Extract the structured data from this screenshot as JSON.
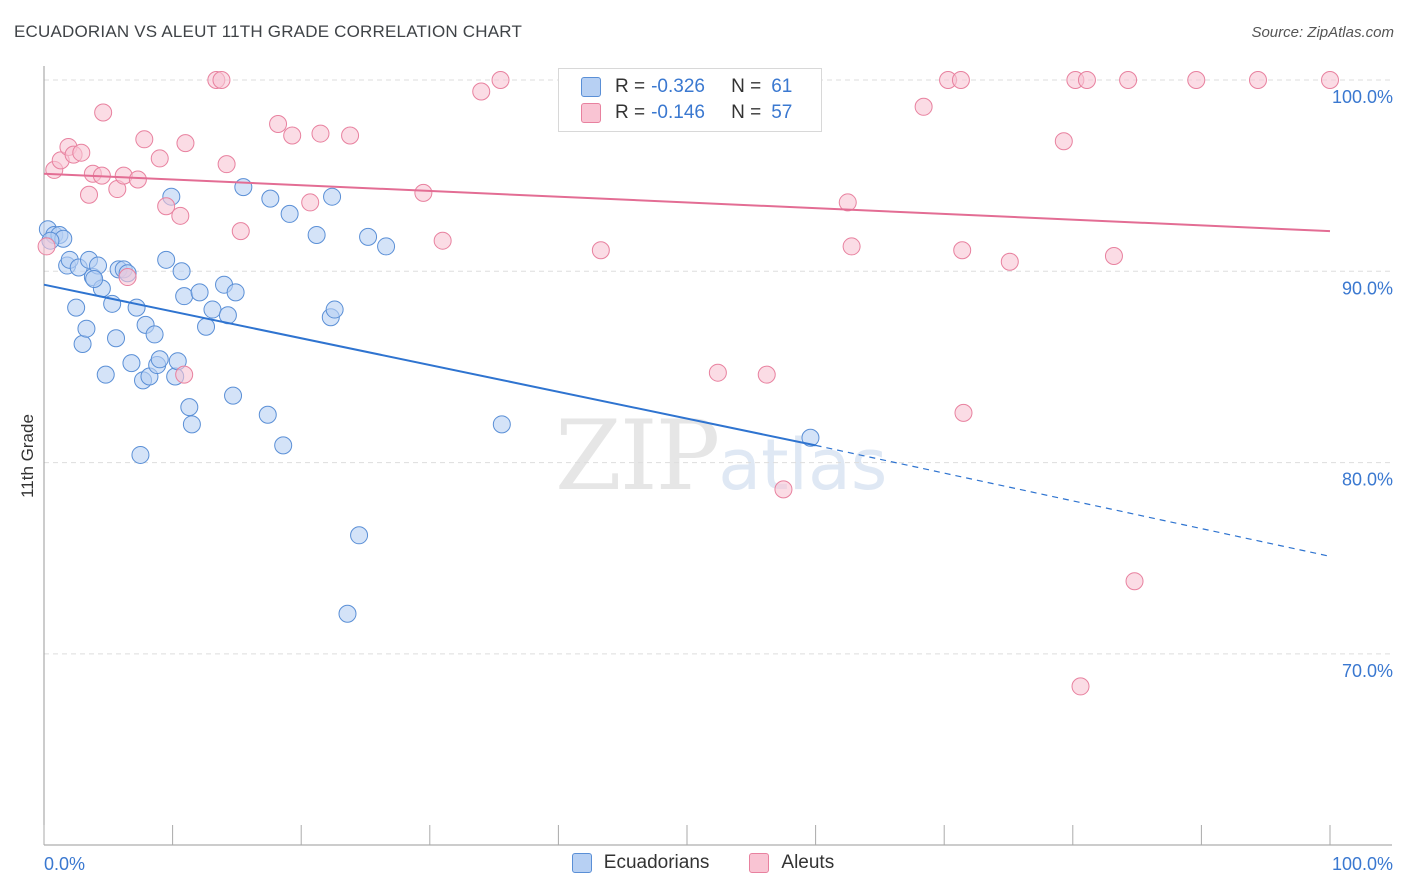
{
  "title": "ECUADORIAN VS ALEUT 11TH GRADE CORRELATION CHART",
  "source": "Source: ZipAtlas.com",
  "watermark": {
    "zip": "ZIP",
    "atlas": "atlas"
  },
  "colors": {
    "blue_fill": "#b7d0f3",
    "blue_stroke": "#5a8fd6",
    "blue_line": "#2f74d0",
    "pink_fill": "#f9c4d3",
    "pink_stroke": "#e8819f",
    "pink_line": "#e36d94",
    "axis_text": "#3a78d0",
    "grid": "#dddddd"
  },
  "legend": {
    "rows": [
      {
        "r_label": "R =",
        "r_value": "-0.326",
        "n_label": "N =",
        "n_value": "61"
      },
      {
        "r_label": "R =",
        "r_value": "-0.146",
        "n_label": "N =",
        "n_value": "57"
      }
    ]
  },
  "bottom_legend": [
    "Ecuadorians",
    "Aleuts"
  ],
  "chart_data": {
    "type": "scatter",
    "title": "ECUADORIAN VS ALEUT 11TH GRADE CORRELATION CHART",
    "xlabel": "",
    "ylabel": "11th Grade",
    "xlim": [
      0,
      100
    ],
    "ylim": [
      61,
      101
    ],
    "x_tick_labels": [
      "0.0%",
      "100.0%"
    ],
    "y_ticks": [
      70,
      80,
      90,
      100
    ],
    "y_tick_labels": [
      "70.0%",
      "80.0%",
      "90.0%",
      "100.0%"
    ],
    "grid": true,
    "legend_position": "top-center",
    "series": [
      {
        "name": "Ecuadorians",
        "R": -0.326,
        "N": 61,
        "trend": {
          "x0": 0,
          "y0": 89.3,
          "x1": 60,
          "y1": 80.9,
          "dash_to_x": 100,
          "dash_to_y": 75.1
        },
        "points": [
          [
            0.3,
            92.2
          ],
          [
            0.8,
            91.9
          ],
          [
            1.2,
            91.9
          ],
          [
            1.5,
            91.7
          ],
          [
            1.8,
            90.3
          ],
          [
            2.0,
            90.6
          ],
          [
            2.5,
            88.1
          ],
          [
            2.7,
            90.2
          ],
          [
            3.0,
            86.2
          ],
          [
            3.3,
            87.0
          ],
          [
            3.5,
            90.6
          ],
          [
            3.8,
            89.7
          ],
          [
            4.2,
            90.3
          ],
          [
            4.5,
            89.1
          ],
          [
            4.8,
            84.6
          ],
          [
            5.3,
            88.3
          ],
          [
            5.6,
            86.5
          ],
          [
            5.8,
            90.1
          ],
          [
            6.2,
            90.1
          ],
          [
            6.5,
            89.9
          ],
          [
            6.8,
            85.2
          ],
          [
            7.2,
            88.1
          ],
          [
            7.5,
            80.4
          ],
          [
            7.7,
            84.3
          ],
          [
            7.9,
            87.2
          ],
          [
            8.2,
            84.5
          ],
          [
            8.6,
            86.7
          ],
          [
            8.8,
            85.1
          ],
          [
            9.0,
            85.4
          ],
          [
            9.5,
            90.6
          ],
          [
            9.9,
            93.9
          ],
          [
            10.2,
            84.5
          ],
          [
            10.4,
            85.3
          ],
          [
            10.7,
            90.0
          ],
          [
            10.9,
            88.7
          ],
          [
            11.3,
            82.9
          ],
          [
            11.5,
            82.0
          ],
          [
            12.1,
            88.9
          ],
          [
            12.6,
            87.1
          ],
          [
            13.1,
            88.0
          ],
          [
            14.0,
            89.3
          ],
          [
            14.3,
            87.7
          ],
          [
            14.9,
            88.9
          ],
          [
            14.7,
            83.5
          ],
          [
            15.5,
            94.4
          ],
          [
            17.4,
            82.5
          ],
          [
            17.6,
            93.8
          ],
          [
            18.6,
            80.9
          ],
          [
            19.1,
            93.0
          ],
          [
            21.2,
            91.9
          ],
          [
            22.3,
            87.6
          ],
          [
            22.6,
            88.0
          ],
          [
            22.4,
            93.9
          ],
          [
            23.6,
            72.1
          ],
          [
            24.5,
            76.2
          ],
          [
            25.2,
            91.8
          ],
          [
            26.6,
            91.3
          ],
          [
            35.6,
            82.0
          ],
          [
            59.6,
            81.3
          ],
          [
            0.5,
            91.6
          ],
          [
            3.9,
            89.6
          ]
        ]
      },
      {
        "name": "Aleuts",
        "R": -0.146,
        "N": 57,
        "trend": {
          "x0": 0,
          "y0": 95.1,
          "x1": 100,
          "y1": 92.1
        },
        "points": [
          [
            0.2,
            91.3
          ],
          [
            0.8,
            95.3
          ],
          [
            1.3,
            95.8
          ],
          [
            1.9,
            96.5
          ],
          [
            2.3,
            96.1
          ],
          [
            2.9,
            96.2
          ],
          [
            3.5,
            94.0
          ],
          [
            3.8,
            95.1
          ],
          [
            4.5,
            95.0
          ],
          [
            4.6,
            98.3
          ],
          [
            5.7,
            94.3
          ],
          [
            6.2,
            95.0
          ],
          [
            6.5,
            89.7
          ],
          [
            7.3,
            94.8
          ],
          [
            7.8,
            96.9
          ],
          [
            9.0,
            95.9
          ],
          [
            9.5,
            93.4
          ],
          [
            10.6,
            92.9
          ],
          [
            11.0,
            96.7
          ],
          [
            10.9,
            84.6
          ],
          [
            13.4,
            100.0
          ],
          [
            13.8,
            100.0
          ],
          [
            14.2,
            95.6
          ],
          [
            15.3,
            92.1
          ],
          [
            18.2,
            97.7
          ],
          [
            19.3,
            97.1
          ],
          [
            20.7,
            93.6
          ],
          [
            21.5,
            97.2
          ],
          [
            23.8,
            97.1
          ],
          [
            29.5,
            94.1
          ],
          [
            31.0,
            91.6
          ],
          [
            34.0,
            99.4
          ],
          [
            35.5,
            100.0
          ],
          [
            43.3,
            91.1
          ],
          [
            47.2,
            100.0
          ],
          [
            52.4,
            84.7
          ],
          [
            55.3,
            100.0
          ],
          [
            56.2,
            84.6
          ],
          [
            57.5,
            78.6
          ],
          [
            62.5,
            93.6
          ],
          [
            62.8,
            91.3
          ],
          [
            68.4,
            98.6
          ],
          [
            70.3,
            100.0
          ],
          [
            71.3,
            100.0
          ],
          [
            71.4,
            91.1
          ],
          [
            71.5,
            82.6
          ],
          [
            75.1,
            90.5
          ],
          [
            79.3,
            96.8
          ],
          [
            80.2,
            100.0
          ],
          [
            80.6,
            68.3
          ],
          [
            81.1,
            100.0
          ],
          [
            83.2,
            90.8
          ],
          [
            84.3,
            100.0
          ],
          [
            84.8,
            73.8
          ],
          [
            89.6,
            100.0
          ],
          [
            94.4,
            100.0
          ],
          [
            100.0,
            100.0
          ]
        ]
      }
    ]
  }
}
